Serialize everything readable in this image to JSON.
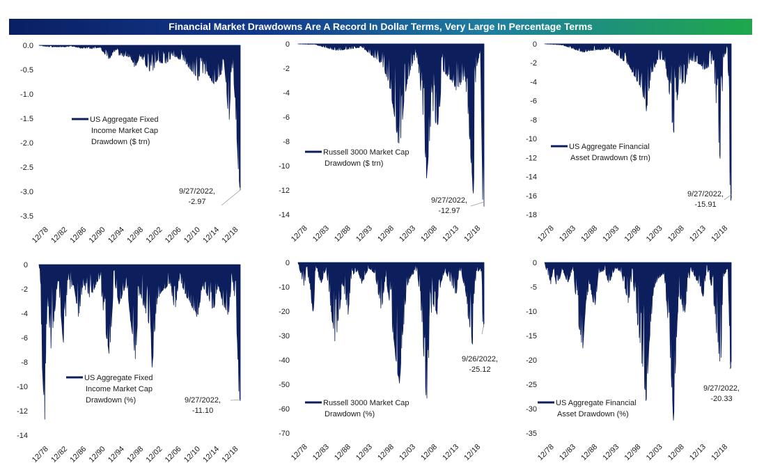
{
  "banner": {
    "title": "Financial Market Drawdowns Are A Record In Dollar Terms, Very Large In Percentage Terms"
  },
  "colors": {
    "series": "#0c1f5c",
    "callout_line": "#9a9a9a"
  },
  "chart_data": [
    {
      "type": "area",
      "title": "",
      "series_name": [
        "US Aggregate Fixed",
        "Income Market Cap",
        "Drawdown ($ trn)"
      ],
      "x_start_year": 1978.9,
      "x_end_year": 2022.74,
      "xticks": [
        "12/78",
        "12/82",
        "12/86",
        "12/90",
        "12/94",
        "12/98",
        "12/02",
        "12/06",
        "12/10",
        "12/14",
        "12/18"
      ],
      "ylim": [
        -3.5,
        0
      ],
      "yticks": [
        0,
        -0.5,
        -1.0,
        -1.5,
        -2.0,
        -2.5,
        -3.0,
        -3.5
      ],
      "ytick_labels": [
        "0.0",
        "-0.5",
        "-1.0",
        "-1.5",
        "-2.0",
        "-2.5",
        "-3.0",
        "-3.5"
      ],
      "points": [
        [
          1978.9,
          0
        ],
        [
          1980.2,
          -0.02
        ],
        [
          1981.5,
          -0.03
        ],
        [
          1984.0,
          -0.03
        ],
        [
          1986.5,
          -0.02
        ],
        [
          1987.5,
          -0.05
        ],
        [
          1990.5,
          -0.06
        ],
        [
          1992.0,
          -0.04
        ],
        [
          1994.3,
          -0.27
        ],
        [
          1995.2,
          -0.1
        ],
        [
          1996.5,
          -0.2
        ],
        [
          1998.8,
          -0.22
        ],
        [
          1999.8,
          -0.42
        ],
        [
          2001.0,
          -0.2
        ],
        [
          2003.5,
          -0.58
        ],
        [
          2004.5,
          -0.3
        ],
        [
          2006.5,
          -0.35
        ],
        [
          2008.0,
          -0.2
        ],
        [
          2010.5,
          -0.3
        ],
        [
          2013.5,
          -0.65
        ],
        [
          2015.5,
          -0.5
        ],
        [
          2016.9,
          -0.75
        ],
        [
          2018.5,
          -0.55
        ],
        [
          2019.3,
          -0.4
        ],
        [
          2020.3,
          -1.5
        ],
        [
          2020.9,
          -0.25
        ],
        [
          2021.5,
          -0.9
        ],
        [
          2022.0,
          -1.8
        ],
        [
          2022.45,
          -2.7
        ],
        [
          2022.74,
          -2.97
        ]
      ],
      "callout": {
        "date": "9/27/2022,",
        "value": "-2.97"
      }
    },
    {
      "type": "area",
      "title": "",
      "series_name": [
        "Russell 3000 Market Cap",
        "Drawdown ($ trn)"
      ],
      "x_start_year": 1978.9,
      "x_end_year": 2022.74,
      "xticks": [
        "12/78",
        "12/83",
        "12/88",
        "12/93",
        "12/98",
        "12/03",
        "12/08",
        "12/13",
        "12/18"
      ],
      "ylim": [
        -14,
        0
      ],
      "yticks": [
        0,
        -2,
        -4,
        -6,
        -8,
        -10,
        -12,
        -14
      ],
      "ytick_labels": [
        "0",
        "-2",
        "-4",
        "-6",
        "-8",
        "-10",
        "-12",
        "-14"
      ],
      "points": [
        [
          1978.9,
          0
        ],
        [
          1983.0,
          -0.05
        ],
        [
          1987.8,
          -0.5
        ],
        [
          1990.7,
          -0.4
        ],
        [
          1994.0,
          -0.25
        ],
        [
          1998.6,
          -1.5
        ],
        [
          2000.4,
          -3.0
        ],
        [
          2001.8,
          -6.0
        ],
        [
          2002.8,
          -8.3
        ],
        [
          2004.0,
          -4.0
        ],
        [
          2005.5,
          -1.8
        ],
        [
          2007.0,
          -1.0
        ],
        [
          2008.0,
          -4.0
        ],
        [
          2008.8,
          -8.0
        ],
        [
          2009.2,
          -10.8
        ],
        [
          2010.5,
          -5.0
        ],
        [
          2011.8,
          -6.5
        ],
        [
          2013.0,
          -2.0
        ],
        [
          2015.7,
          -3.0
        ],
        [
          2016.1,
          -3.5
        ],
        [
          2018.3,
          -2.5
        ],
        [
          2018.95,
          -5.5
        ],
        [
          2020.25,
          -12.2
        ],
        [
          2020.8,
          -2.0
        ],
        [
          2021.9,
          -0.5
        ],
        [
          2022.3,
          -9.0
        ],
        [
          2022.45,
          -13.2
        ],
        [
          2022.74,
          -12.97
        ]
      ],
      "callout": {
        "date": "9/27/2022,",
        "value": "-12.97"
      }
    },
    {
      "type": "area",
      "title": "",
      "series_name": [
        "US Aggregate Financial",
        "Asset Drawdown ($ trn)"
      ],
      "x_start_year": 1978.9,
      "x_end_year": 2022.74,
      "xticks": [
        "12/78",
        "12/83",
        "12/88",
        "12/93",
        "12/98",
        "12/03",
        "12/08",
        "12/13",
        "12/18"
      ],
      "ylim": [
        -18,
        0
      ],
      "yticks": [
        0,
        -2,
        -4,
        -6,
        -8,
        -10,
        -12,
        -14,
        -16,
        -18
      ],
      "ytick_labels": [
        "0",
        "-2",
        "-4",
        "-6",
        "-8",
        "-10",
        "-12",
        "-14",
        "-16",
        "-18"
      ],
      "points": [
        [
          1978.9,
          0
        ],
        [
          1983.0,
          -0.1
        ],
        [
          1987.8,
          -0.8
        ],
        [
          1990.7,
          -0.6
        ],
        [
          1994.0,
          -0.5
        ],
        [
          1998.6,
          -2.0
        ],
        [
          2000.5,
          -3.5
        ],
        [
          2001.8,
          -4.5
        ],
        [
          2002.8,
          -6.4
        ],
        [
          2004.0,
          -3.0
        ],
        [
          2005.5,
          -1.5
        ],
        [
          2007.0,
          -1.5
        ],
        [
          2008.0,
          -4.0
        ],
        [
          2008.8,
          -7.5
        ],
        [
          2009.2,
          -9.2
        ],
        [
          2010.5,
          -3.5
        ],
        [
          2011.8,
          -4.0
        ],
        [
          2013.0,
          -1.5
        ],
        [
          2015.7,
          -2.0
        ],
        [
          2016.1,
          -2.5
        ],
        [
          2018.3,
          -2.0
        ],
        [
          2018.95,
          -4.0
        ],
        [
          2020.25,
          -12.8
        ],
        [
          2020.8,
          -1.5
        ],
        [
          2021.9,
          -0.5
        ],
        [
          2022.3,
          -8.0
        ],
        [
          2022.45,
          -16.0
        ],
        [
          2022.74,
          -15.91
        ]
      ],
      "callout": {
        "date": "9/27/2022,",
        "value": "-15.91"
      }
    },
    {
      "type": "area",
      "title": "",
      "series_name": [
        "US Aggregate Fixed",
        "Income Market Cap",
        "Drawdown (%)"
      ],
      "x_start_year": 1978.9,
      "x_end_year": 2022.74,
      "xticks": [
        "12/78",
        "12/82",
        "12/86",
        "12/90",
        "12/94",
        "12/98",
        "12/02",
        "12/06",
        "12/10",
        "12/14",
        "12/18"
      ],
      "ylim": [
        -14,
        0
      ],
      "yticks": [
        0,
        -2,
        -4,
        -6,
        -8,
        -10,
        -12,
        -14
      ],
      "ytick_labels": [
        "0",
        "-2",
        "-4",
        "-6",
        "-8",
        "-10",
        "-12",
        "-14"
      ],
      "points": [
        [
          1978.9,
          0
        ],
        [
          1979.3,
          -2.5
        ],
        [
          1979.6,
          -8.0
        ],
        [
          1980.15,
          -12.2
        ],
        [
          1980.5,
          -5.0
        ],
        [
          1980.9,
          -3.0
        ],
        [
          1981.5,
          -6.5
        ],
        [
          1982.5,
          -3.0
        ],
        [
          1983.0,
          -1.0
        ],
        [
          1984.4,
          -6.7
        ],
        [
          1985.0,
          -2.0
        ],
        [
          1986.5,
          -1.5
        ],
        [
          1987.5,
          -4.0
        ],
        [
          1988.5,
          -1.5
        ],
        [
          1990.0,
          -2.5
        ],
        [
          1992.0,
          -1.0
        ],
        [
          1994.3,
          -7.4
        ],
        [
          1995.2,
          -1.0
        ],
        [
          1996.3,
          -3.0
        ],
        [
          1998.0,
          -1.5
        ],
        [
          1999.9,
          -7.3
        ],
        [
          2000.8,
          -2.0
        ],
        [
          2003.3,
          -5.0
        ],
        [
          2003.5,
          -8.5
        ],
        [
          2004.5,
          -3.0
        ],
        [
          2005.5,
          -2.0
        ],
        [
          2007.5,
          -1.5
        ],
        [
          2008.5,
          -3.5
        ],
        [
          2009.5,
          -1.0
        ],
        [
          2010.5,
          -2.0
        ],
        [
          2013.5,
          -4.0
        ],
        [
          2014.5,
          -1.5
        ],
        [
          2016.9,
          -3.5
        ],
        [
          2018.0,
          -1.5
        ],
        [
          2018.9,
          -3.0
        ],
        [
          2020.2,
          -3.8
        ],
        [
          2020.9,
          -1.0
        ],
        [
          2021.5,
          -2.5
        ],
        [
          2022.0,
          -5.0
        ],
        [
          2022.45,
          -10.2
        ],
        [
          2022.74,
          -11.1
        ]
      ],
      "callout": {
        "date": "9/27/2022,",
        "value": "-11.10"
      }
    },
    {
      "type": "area",
      "title": "",
      "series_name": [
        "Russell 3000 Market Cap",
        "Drawdown (%)"
      ],
      "x_start_year": 1978.9,
      "x_end_year": 2022.74,
      "xticks": [
        "12/78",
        "12/83",
        "12/88",
        "12/93",
        "12/98",
        "12/03",
        "12/08",
        "12/13",
        "12/18"
      ],
      "ylim": [
        -70,
        0
      ],
      "yticks": [
        0,
        -10,
        -20,
        -30,
        -40,
        -50,
        -60,
        -70
      ],
      "ytick_labels": [
        "0",
        "-10",
        "-20",
        "-30",
        "-40",
        "-50",
        "-60",
        "-70"
      ],
      "points": [
        [
          1978.9,
          0
        ],
        [
          1979.5,
          -4.0
        ],
        [
          1980.4,
          -10.0
        ],
        [
          1980.9,
          -2.0
        ],
        [
          1981.6,
          -8.0
        ],
        [
          1982.5,
          -20.0
        ],
        [
          1983.0,
          -2.0
        ],
        [
          1984.3,
          -8.0
        ],
        [
          1985.5,
          -2.0
        ],
        [
          1987.8,
          -33.0
        ],
        [
          1988.5,
          -20.0
        ],
        [
          1989.5,
          -8.0
        ],
        [
          1990.7,
          -20.0
        ],
        [
          1991.5,
          -5.0
        ],
        [
          1993.0,
          -3.0
        ],
        [
          1994.0,
          -8.0
        ],
        [
          1995.5,
          -2.0
        ],
        [
          1997.0,
          -4.0
        ],
        [
          1998.6,
          -19.0
        ],
        [
          1999.5,
          -5.0
        ],
        [
          2000.5,
          -15.0
        ],
        [
          2001.8,
          -35.0
        ],
        [
          2002.8,
          -48.5
        ],
        [
          2003.5,
          -30.0
        ],
        [
          2004.5,
          -10.0
        ],
        [
          2005.5,
          -5.0
        ],
        [
          2007.0,
          -3.0
        ],
        [
          2008.0,
          -20.0
        ],
        [
          2008.8,
          -45.0
        ],
        [
          2009.2,
          -58.5
        ],
        [
          2010.0,
          -25.0
        ],
        [
          2010.5,
          -15.0
        ],
        [
          2011.8,
          -20.0
        ],
        [
          2012.5,
          -8.0
        ],
        [
          2013.5,
          -3.0
        ],
        [
          2015.7,
          -10.0
        ],
        [
          2016.1,
          -13.0
        ],
        [
          2017.0,
          -2.0
        ],
        [
          2018.3,
          -10.0
        ],
        [
          2018.95,
          -19.0
        ],
        [
          2020.25,
          -35.0
        ],
        [
          2020.8,
          -5.0
        ],
        [
          2021.9,
          -2.0
        ],
        [
          2022.3,
          -15.0
        ],
        [
          2022.45,
          -25.5
        ],
        [
          2022.74,
          -25.12
        ]
      ],
      "callout": {
        "date": "9/26/2022,",
        "value": "-25.12"
      }
    },
    {
      "type": "area",
      "title": "",
      "series_name": [
        "US Aggregate Financial",
        "Asset Drawdown (%)"
      ],
      "x_start_year": 1978.9,
      "x_end_year": 2022.74,
      "xticks": [
        "12/78",
        "12/83",
        "12/88",
        "12/93",
        "12/98",
        "12/03",
        "12/08",
        "12/13",
        "12/18"
      ],
      "ylim": [
        -35,
        0
      ],
      "yticks": [
        0,
        -5,
        -10,
        -15,
        -20,
        -25,
        -30,
        -35
      ],
      "ytick_labels": [
        "0",
        "-5",
        "-10",
        "-15",
        "-20",
        "-25",
        "-30",
        "-35"
      ],
      "points": [
        [
          1978.9,
          0
        ],
        [
          1979.5,
          -2.0
        ],
        [
          1980.4,
          -4.0
        ],
        [
          1980.9,
          -1.0
        ],
        [
          1981.6,
          -4.0
        ],
        [
          1982.5,
          -3.0
        ],
        [
          1983.0,
          -1.0
        ],
        [
          1984.3,
          -4.0
        ],
        [
          1985.5,
          -1.0
        ],
        [
          1987.8,
          -18.0
        ],
        [
          1988.5,
          -8.0
        ],
        [
          1989.5,
          -4.0
        ],
        [
          1990.7,
          -9.0
        ],
        [
          1991.5,
          -2.0
        ],
        [
          1993.0,
          -1.5
        ],
        [
          1994.0,
          -4.0
        ],
        [
          1995.5,
          -1.0
        ],
        [
          1997.0,
          -2.0
        ],
        [
          1998.6,
          -8.0
        ],
        [
          1999.5,
          -2.0
        ],
        [
          2000.5,
          -10.0
        ],
        [
          2001.8,
          -20.0
        ],
        [
          2002.8,
          -28.0
        ],
        [
          2003.5,
          -15.0
        ],
        [
          2004.5,
          -5.0
        ],
        [
          2005.5,
          -3.0
        ],
        [
          2007.0,
          -2.0
        ],
        [
          2008.0,
          -12.0
        ],
        [
          2008.8,
          -25.0
        ],
        [
          2009.2,
          -32.5
        ],
        [
          2010.0,
          -12.0
        ],
        [
          2010.5,
          -6.0
        ],
        [
          2011.8,
          -10.0
        ],
        [
          2012.5,
          -4.0
        ],
        [
          2013.5,
          -1.5
        ],
        [
          2015.7,
          -5.0
        ],
        [
          2016.1,
          -7.0
        ],
        [
          2017.0,
          -1.0
        ],
        [
          2018.3,
          -5.0
        ],
        [
          2018.95,
          -10.0
        ],
        [
          2020.25,
          -21.5
        ],
        [
          2020.8,
          -3.0
        ],
        [
          2021.9,
          -1.0
        ],
        [
          2022.3,
          -10.0
        ],
        [
          2022.45,
          -20.5
        ],
        [
          2022.74,
          -20.33
        ]
      ],
      "callout": {
        "date": "9/27/2022,",
        "value": "-20.33"
      }
    }
  ]
}
